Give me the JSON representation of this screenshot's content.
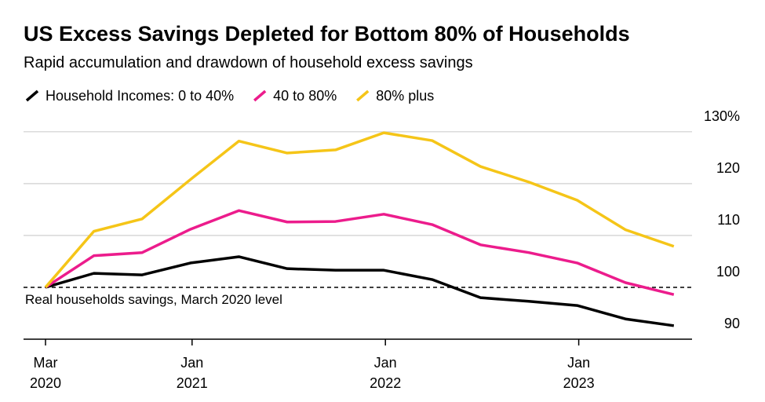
{
  "chart_data": {
    "type": "line",
    "title": "US Excess Savings Depleted for Bottom 80% of Households",
    "subtitle": "Rapid accumulation and drawdown of household excess savings",
    "annotation": "Real households savings, March 2020 level",
    "categories": [
      "Mar 2020",
      null,
      null,
      "Jan 2021",
      null,
      null,
      null,
      "Jan 2022",
      null,
      null,
      null,
      "Jan 2023",
      null,
      null
    ],
    "series": [
      {
        "name": "Household Incomes: 0 to 40%",
        "color": "#000000",
        "values": [
          100,
          102.7,
          102.4,
          104.7,
          105.9,
          103.6,
          103.3,
          103.3,
          101.5,
          98,
          97.3,
          96.5,
          93.9,
          92.6
        ]
      },
      {
        "name": "40 to 80%",
        "color": "#ec1c8c",
        "values": [
          100,
          106.1,
          106.7,
          111.2,
          114.8,
          112.6,
          112.7,
          114.1,
          112.1,
          108.2,
          106.7,
          104.7,
          100.9,
          98.6
        ]
      },
      {
        "name": "80% plus",
        "color": "#f5c518",
        "values": [
          100,
          110.8,
          113.2,
          120.8,
          128.2,
          125.9,
          126.5,
          129.8,
          128.3,
          123.3,
          120.3,
          116.8,
          111.1,
          107.9
        ]
      }
    ],
    "ylim": [
      90,
      133
    ],
    "yticks": [
      90,
      100,
      110,
      120,
      {
        "value": 130,
        "label": "130%"
      }
    ],
    "reference_line": 100,
    "grid": true
  }
}
